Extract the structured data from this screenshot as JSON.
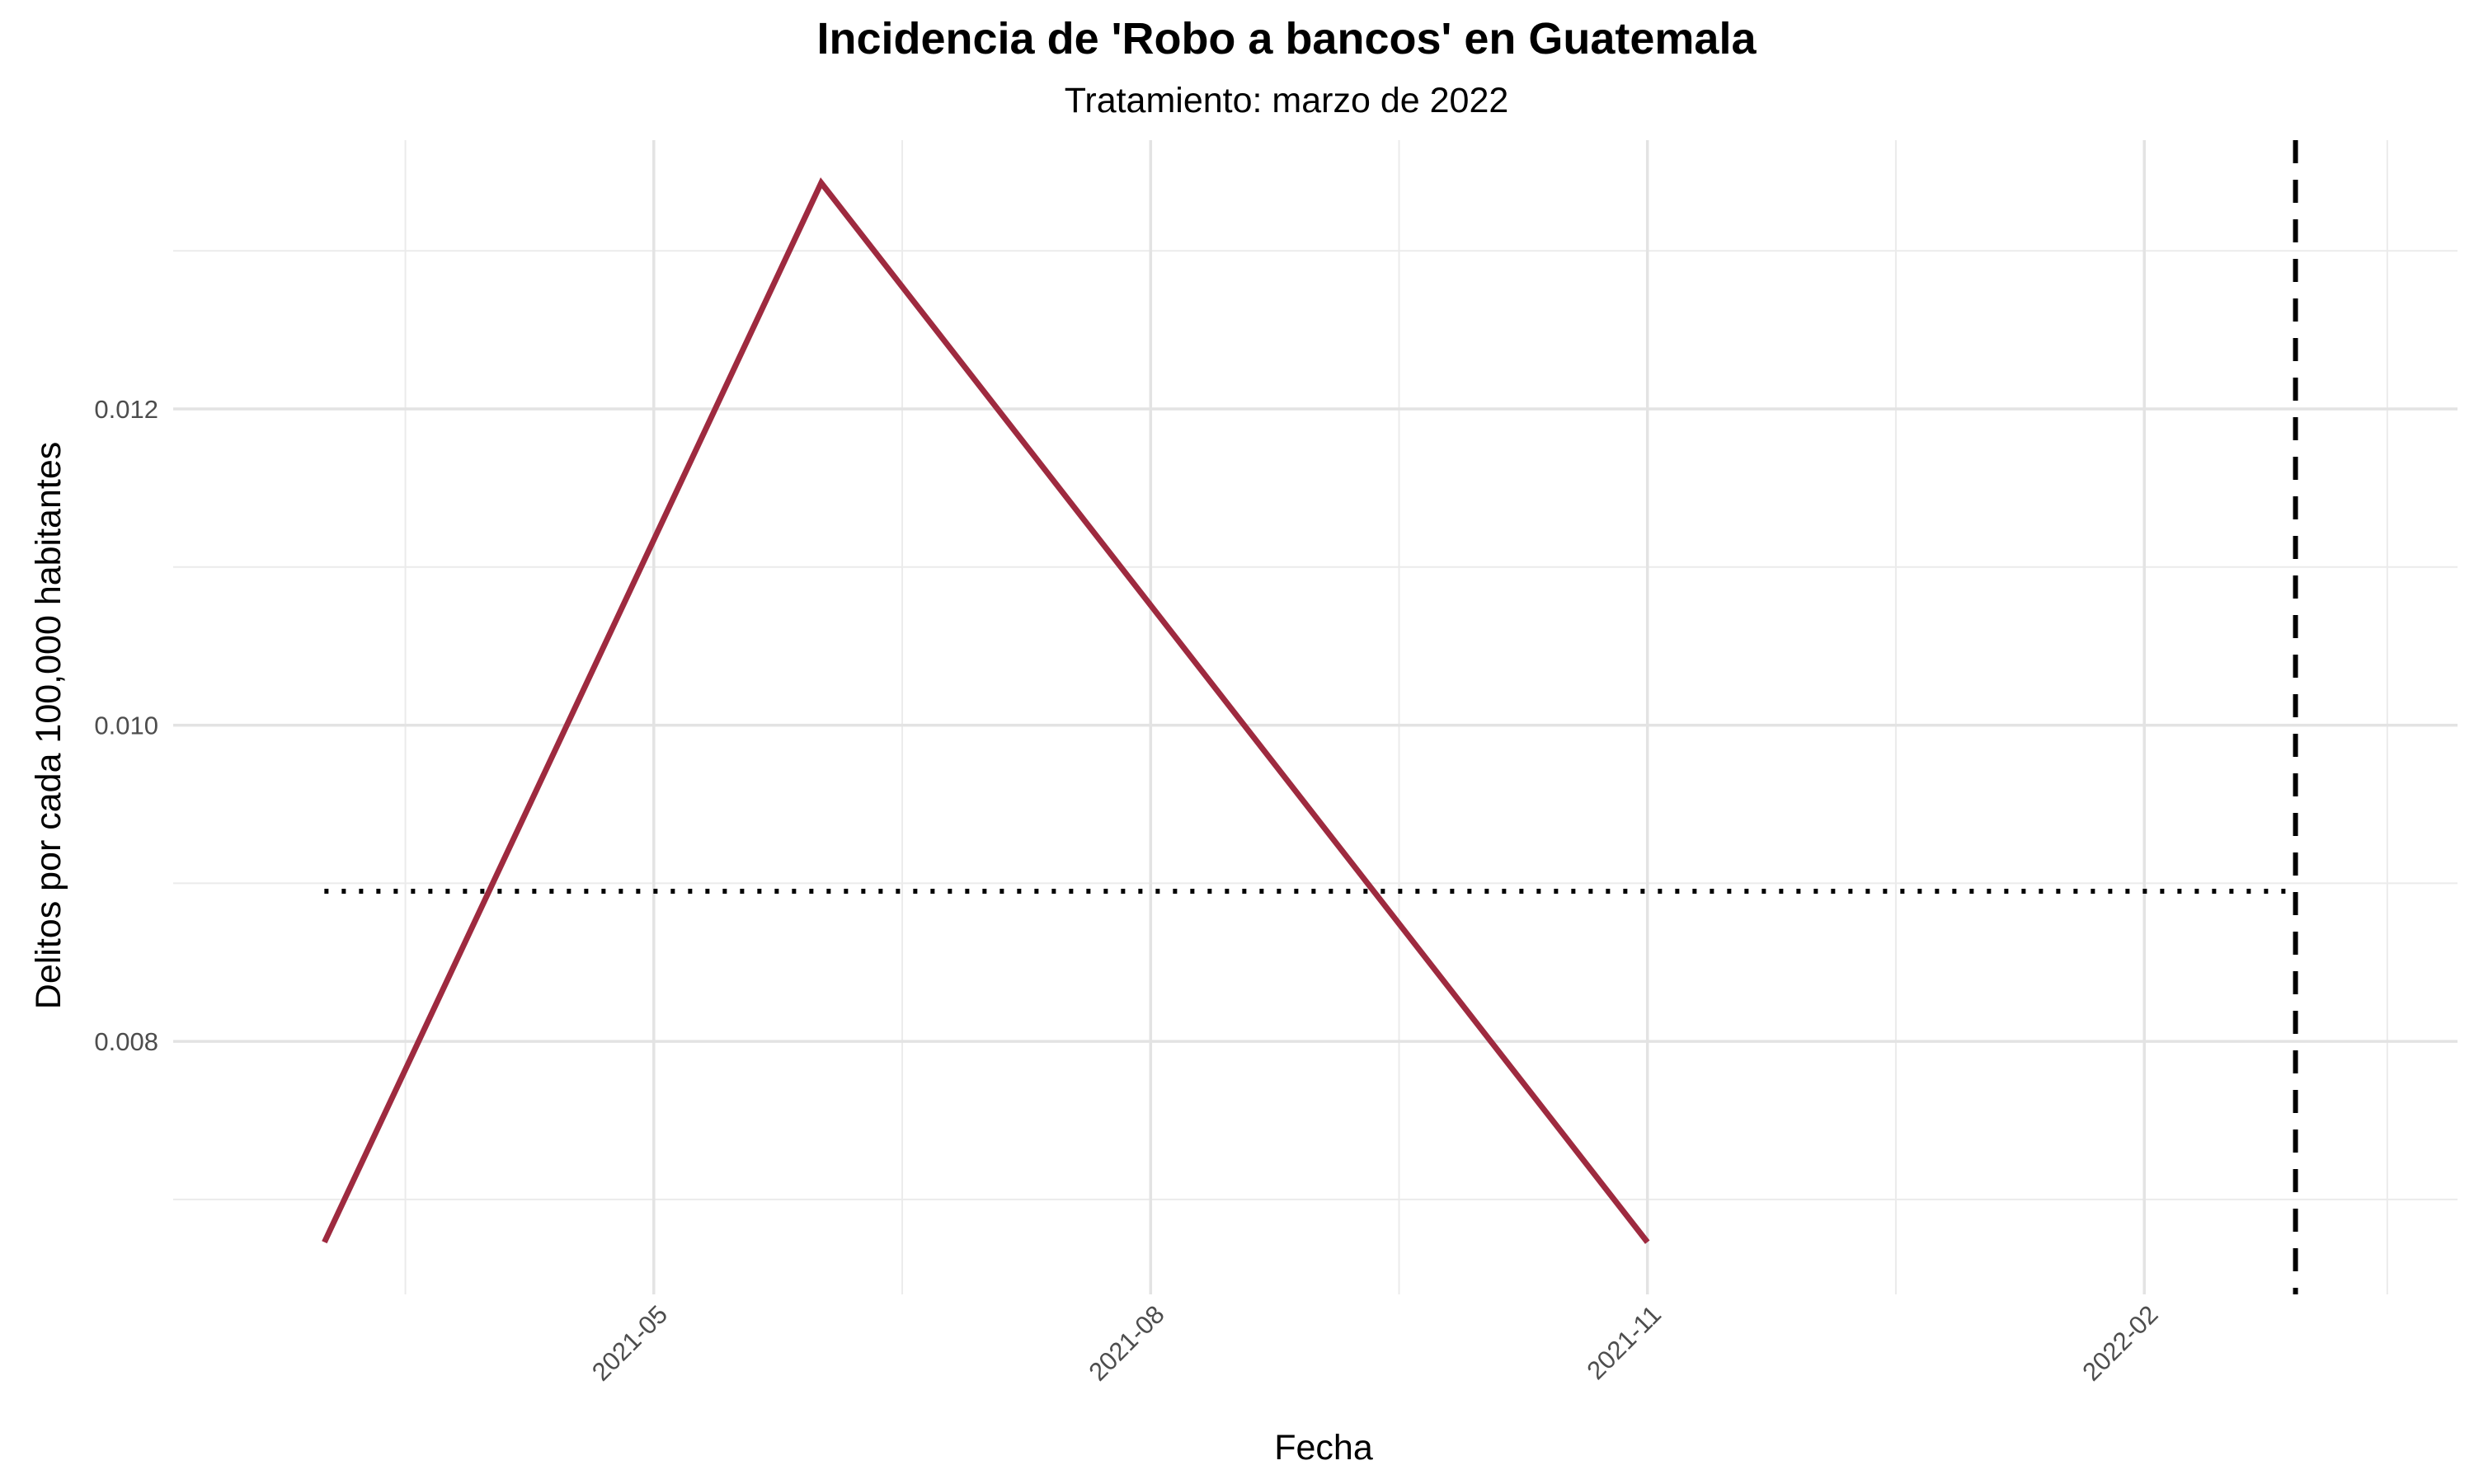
{
  "chart_data": {
    "type": "line",
    "title": "Incidencia de 'Robo a bancos' en Guatemala",
    "subtitle": "Tratamiento: marzo de 2022",
    "xlabel": "Fecha",
    "ylabel": "Delitos por cada 100,000 habitantes",
    "x": [
      "2021-03-01",
      "2021-06-01",
      "2021-11-01"
    ],
    "series": [
      {
        "values": [
          0.00673,
          0.01343,
          0.00673
        ],
        "color": "#9e2a3f"
      }
    ],
    "reference_lines": {
      "pre_treatment_mean": {
        "y": 0.00895,
        "x_start": "2021-03-01",
        "x_end": "2022-03-01",
        "style": "dotted",
        "color": "#000000"
      },
      "treatment_date": {
        "x": "2022-03-01",
        "style": "dashed",
        "color": "#000000"
      }
    },
    "x_ticks": [
      "2021-05",
      "2021-08",
      "2021-11",
      "2022-02"
    ],
    "x_tick_dates": [
      "2021-05-01",
      "2021-08-01",
      "2021-11-01",
      "2022-02-01"
    ],
    "x_minor_dates": [
      "2021-03-16",
      "2021-06-16",
      "2021-09-16",
      "2021-12-17",
      "2022-03-18"
    ],
    "y_ticks": [
      "0.008",
      "0.010",
      "0.012"
    ],
    "y_tick_values": [
      0.008,
      0.01,
      0.012
    ],
    "y_minor_values": [
      0.007,
      0.009,
      0.011,
      0.013
    ],
    "xlim": [
      "2021-02-01",
      "2022-03-31"
    ],
    "ylim": [
      0.0064,
      0.0137
    ],
    "grid": true,
    "legend": "none"
  }
}
